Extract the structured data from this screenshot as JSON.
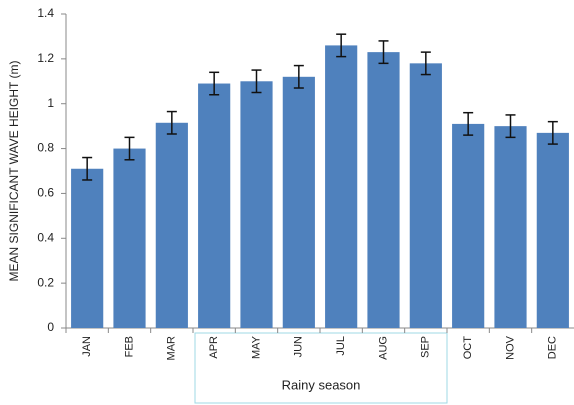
{
  "chart_data": {
    "type": "bar",
    "y_label": "MEAN SIGNIFICANT WAVE HEIGHT (m)",
    "categories": [
      "JAN",
      "FEB",
      "MAR",
      "APR",
      "MAY",
      "JUN",
      "JUL",
      "AUG",
      "SEP",
      "OCT",
      "NOV",
      "DEC"
    ],
    "values": [
      0.71,
      0.8,
      0.915,
      1.09,
      1.1,
      1.12,
      1.26,
      1.23,
      1.18,
      0.91,
      0.9,
      0.87
    ],
    "errors": [
      0.05,
      0.05,
      0.05,
      0.05,
      0.05,
      0.05,
      0.05,
      0.05,
      0.05,
      0.05,
      0.05,
      0.05
    ],
    "color": "#4f81bd",
    "ylim": [
      0,
      1.4
    ],
    "yticks": [
      0,
      0.2,
      0.4,
      0.6,
      0.8,
      1,
      1.2,
      1.4
    ],
    "grid": false,
    "annotation": "Rainy season"
  }
}
